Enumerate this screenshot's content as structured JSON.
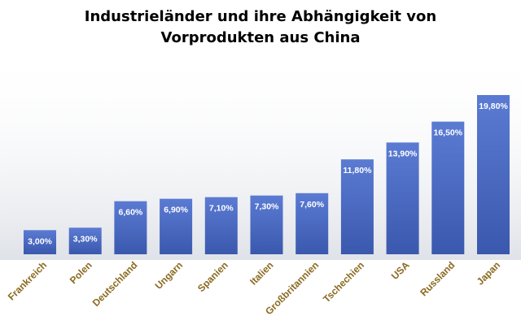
{
  "chart_data": {
    "type": "bar",
    "title_lines": [
      "Industrieländer und ihre Abhängigkeit von",
      "Vorprodukten aus China"
    ],
    "categories": [
      "Frankreich",
      "Polen",
      "Deutschland",
      "Ungarn",
      "Spanien",
      "Italien",
      "Großbritannien",
      "Tschechien",
      "USA",
      "Russland",
      "Japan"
    ],
    "values": [
      3.0,
      3.3,
      6.6,
      6.9,
      7.1,
      7.3,
      7.6,
      11.8,
      13.9,
      16.5,
      19.8
    ],
    "data_labels": [
      "3,00%",
      "3,30%",
      "6,60%",
      "6,90%",
      "7,10%",
      "7,30%",
      "7,60%",
      "11,80%",
      "13,90%",
      "16,50%",
      "19,80%"
    ],
    "ylim": [
      0,
      20
    ],
    "grid": false,
    "legend": "none",
    "colors": {
      "bar_top": "#5b7bd3",
      "bar_bottom": "#3a58ad",
      "label_text": "#ffffff",
      "category_text": "#8a6a1f",
      "backdrop": "#dfe2e8"
    }
  }
}
